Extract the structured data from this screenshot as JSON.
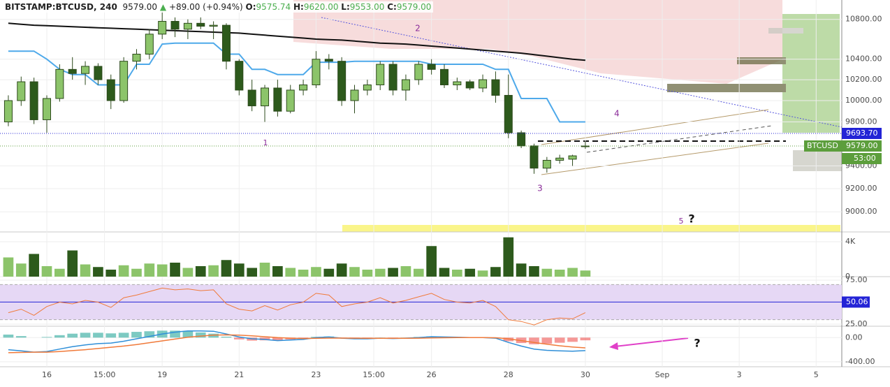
{
  "header": {
    "symbol": "BITSTAMP:BTCUSD, 240",
    "last": "9579.00",
    "arrow": "▲",
    "change": "+89.00 (+0.94%)",
    "open_label": "O:",
    "open": "9575.74",
    "high_label": "H:",
    "high": "9620.00",
    "low_label": "L:",
    "low": "9553.00",
    "close_label": "C:",
    "close": "9579.00"
  },
  "chart_data": [
    {
      "type": "candlestick",
      "symbol": "BTCUSD",
      "countdown": "53:00",
      "log": true,
      "grid": true,
      "up_color": "#8cc46a",
      "down_color": "#2d5a1c",
      "x": [
        0,
        1,
        2,
        3,
        4,
        5,
        6,
        7,
        8,
        9,
        10,
        11,
        12,
        13,
        14,
        15,
        16,
        17,
        18,
        19,
        20,
        21,
        22,
        23,
        24,
        25,
        26,
        27,
        28,
        29,
        30,
        31,
        32,
        33,
        34,
        35,
        36,
        37,
        38,
        39,
        40,
        41,
        42,
        43,
        44,
        45
      ],
      "open": [
        9800,
        10000,
        10180,
        9820,
        10020,
        10300,
        10260,
        10330,
        10200,
        10000,
        10380,
        10450,
        10650,
        10780,
        10700,
        10760,
        10730,
        10740,
        10380,
        10100,
        9950,
        10120,
        9900,
        10100,
        10150,
        10400,
        10380,
        10000,
        10100,
        10150,
        10350,
        10100,
        10200,
        10350,
        10300,
        10150,
        10180,
        10120,
        10200,
        10050,
        9700,
        9580,
        9380,
        9450,
        9460,
        9575.74
      ],
      "high": [
        10050,
        10230,
        10220,
        10050,
        10350,
        10420,
        10380,
        10360,
        10250,
        10420,
        10500,
        10700,
        10900,
        10820,
        10800,
        10820,
        10780,
        10760,
        10400,
        10200,
        10150,
        10200,
        10150,
        10200,
        10480,
        10450,
        10420,
        10150,
        10200,
        10380,
        10380,
        10250,
        10380,
        10400,
        10350,
        10220,
        10200,
        10250,
        10280,
        10250,
        9720,
        9600,
        9480,
        9500,
        9500,
        9620
      ],
      "low": [
        9760,
        9950,
        9780,
        9700,
        9990,
        10200,
        10150,
        10150,
        9920,
        9980,
        10300,
        10400,
        10600,
        10620,
        10600,
        10700,
        10600,
        10300,
        10050,
        9900,
        9800,
        9850,
        9880,
        10050,
        10120,
        10300,
        9950,
        9880,
        10050,
        10100,
        10050,
        10000,
        10150,
        10250,
        10120,
        10100,
        10100,
        10080,
        9980,
        9650,
        9560,
        9330,
        9340,
        9420,
        9400,
        9553
      ],
      "close": [
        10000,
        10180,
        9820,
        10020,
        10300,
        10260,
        10330,
        10200,
        10000,
        10380,
        10450,
        10650,
        10780,
        10700,
        10760,
        10730,
        10740,
        10380,
        10100,
        9950,
        10120,
        9900,
        10100,
        10150,
        10400,
        10380,
        10000,
        10100,
        10150,
        10350,
        10100,
        10200,
        10350,
        10300,
        10150,
        10180,
        10120,
        10200,
        10050,
        9700,
        9580,
        9380,
        9450,
        9470,
        9490,
        9579
      ],
      "lines": [
        {
          "color": "#111111",
          "values": [
            10760,
            10750,
            10740,
            10735,
            10730,
            10725,
            10720,
            10715,
            10710,
            10705,
            10700,
            10695,
            10690,
            10685,
            10680,
            10675,
            10670,
            10665,
            10660,
            10650,
            10640,
            10630,
            10620,
            10610,
            10600,
            10595,
            10590,
            10580,
            10570,
            10560,
            10555,
            10550,
            10540,
            10530,
            10520,
            10510,
            10500,
            10490,
            10480,
            10470,
            10460,
            10445,
            10430,
            10415,
            10400,
            10390
          ]
        },
        {
          "color": "#4ea9ea",
          "values": [
            10480,
            10480,
            10480,
            10400,
            10300,
            10250,
            10250,
            10150,
            10150,
            10150,
            10350,
            10350,
            10550,
            10560,
            10560,
            10560,
            10560,
            10450,
            10450,
            10300,
            10300,
            10250,
            10250,
            10250,
            10370,
            10370,
            10370,
            10380,
            10380,
            10380,
            10380,
            10380,
            10380,
            10350,
            10350,
            10350,
            10350,
            10350,
            10300,
            10300,
            10020,
            10020,
            10020,
            9800,
            9800,
            9800
          ]
        }
      ],
      "price_lines": [
        {
          "value": 9693.7,
          "label": "9693.70",
          "color": "#2323d6"
        },
        {
          "value": 9579,
          "label": "9579.00",
          "color": "#5c9e3c"
        }
      ],
      "annotations": [
        "1",
        "2",
        "3",
        "4",
        "5",
        "?"
      ],
      "xlim": [
        -0.65,
        65
      ],
      "xticks": [
        {
          "value": 3,
          "label": "16"
        },
        {
          "value": 7.5,
          "label": "15:00"
        },
        {
          "value": 12,
          "label": "19"
        },
        {
          "value": 18,
          "label": "21"
        },
        {
          "value": 24,
          "label": "23"
        },
        {
          "value": 28.5,
          "label": "15:00"
        },
        {
          "value": 33,
          "label": "26"
        },
        {
          "value": 39,
          "label": "28"
        },
        {
          "value": 45,
          "label": "30"
        },
        {
          "value": 51,
          "label": "Sep"
        },
        {
          "value": 57,
          "label": "3"
        },
        {
          "value": 63,
          "label": "5"
        }
      ],
      "ylim": [
        8830,
        11000
      ],
      "yticks": [
        {
          "value": 10800,
          "label": "10800.00"
        },
        {
          "value": 10400,
          "label": "10400.00"
        },
        {
          "value": 10200,
          "label": "10200.00"
        },
        {
          "value": 10000,
          "label": "10000.00"
        },
        {
          "value": 9800,
          "label": "9800.00"
        },
        {
          "value": 9400,
          "label": "9400.00"
        },
        {
          "value": 9200,
          "label": "9200.00"
        },
        {
          "value": 9000,
          "label": "9000.00"
        }
      ]
    },
    {
      "type": "bar",
      "values": [
        2200,
        1500,
        2600,
        1200,
        900,
        3000,
        1400,
        1100,
        800,
        1300,
        900,
        1500,
        1400,
        1600,
        1000,
        1200,
        1300,
        1900,
        1500,
        1000,
        1600,
        1200,
        1000,
        800,
        1100,
        900,
        1500,
        1100,
        800,
        900,
        1000,
        1200,
        900,
        3500,
        1000,
        800,
        900,
        700,
        1100,
        4500,
        1500,
        1200,
        900,
        800,
        1000,
        700
      ],
      "ylim": [
        0,
        4800
      ],
      "yticks": [
        0,
        {
          "value": 4000,
          "label": "4K"
        }
      ]
    },
    {
      "type": "line",
      "color": "#f07a3a",
      "values": [
        38,
        42,
        35,
        45,
        50,
        48,
        52,
        50,
        44,
        55,
        58,
        62,
        66,
        64,
        65,
        63,
        64,
        48,
        42,
        40,
        46,
        41,
        47,
        50,
        60,
        58,
        45,
        48,
        50,
        55,
        49,
        52,
        56,
        60,
        53,
        50,
        49,
        52,
        45,
        30,
        28,
        24,
        30,
        32,
        31,
        38
      ],
      "band": [
        30,
        70
      ],
      "band_color": "#e6d8f5",
      "ma": {
        "value": 50.06,
        "label": "50.06",
        "color": "#2323d6"
      },
      "ylim": [
        22.6,
        77.4
      ],
      "yticks": [
        {
          "value": 75,
          "label": "75.00"
        },
        {
          "value": 25,
          "label": "25.00"
        }
      ]
    },
    {
      "type": "macd",
      "series": [
        {
          "color": "#2f8fd8",
          "values": [
            -200,
            -220,
            -240,
            -230,
            -190,
            -150,
            -120,
            -100,
            -90,
            -60,
            -20,
            20,
            60,
            90,
            110,
            110,
            105,
            60,
            10,
            -20,
            -30,
            -50,
            -40,
            -30,
            0,
            10,
            -10,
            -20,
            -20,
            -10,
            -15,
            -10,
            0,
            15,
            10,
            5,
            0,
            0,
            -10,
            -80,
            -140,
            -190,
            -210,
            -220,
            -225,
            -215
          ]
        },
        {
          "color": "#f07a3a",
          "values": [
            -250,
            -245,
            -240,
            -240,
            -230,
            -215,
            -200,
            -180,
            -160,
            -140,
            -115,
            -85,
            -55,
            -25,
            5,
            25,
            40,
            45,
            40,
            30,
            15,
            0,
            -10,
            -15,
            -12,
            -8,
            -8,
            -10,
            -12,
            -12,
            -12,
            -12,
            -10,
            -5,
            -2,
            0,
            0,
            0,
            -2,
            -20,
            -50,
            -80,
            -110,
            -135,
            -155,
            -170
          ]
        }
      ],
      "histogram": [
        50,
        25,
        0,
        10,
        40,
        65,
        80,
        80,
        70,
        80,
        95,
        105,
        115,
        115,
        105,
        85,
        65,
        15,
        -30,
        -50,
        -45,
        -50,
        -30,
        -15,
        12,
        18,
        -2,
        -10,
        -8,
        2,
        -3,
        2,
        10,
        20,
        12,
        5,
        0,
        0,
        -8,
        -60,
        -90,
        -110,
        -100,
        -85,
        -70,
        -45
      ],
      "up_color": "#26a69a",
      "down_color": "#ef5350",
      "ylim": [
        -482,
        165
      ],
      "yticks": [
        {
          "value": 0,
          "label": "0.00"
        },
        {
          "value": -400,
          "label": "-400.00"
        }
      ]
    }
  ]
}
